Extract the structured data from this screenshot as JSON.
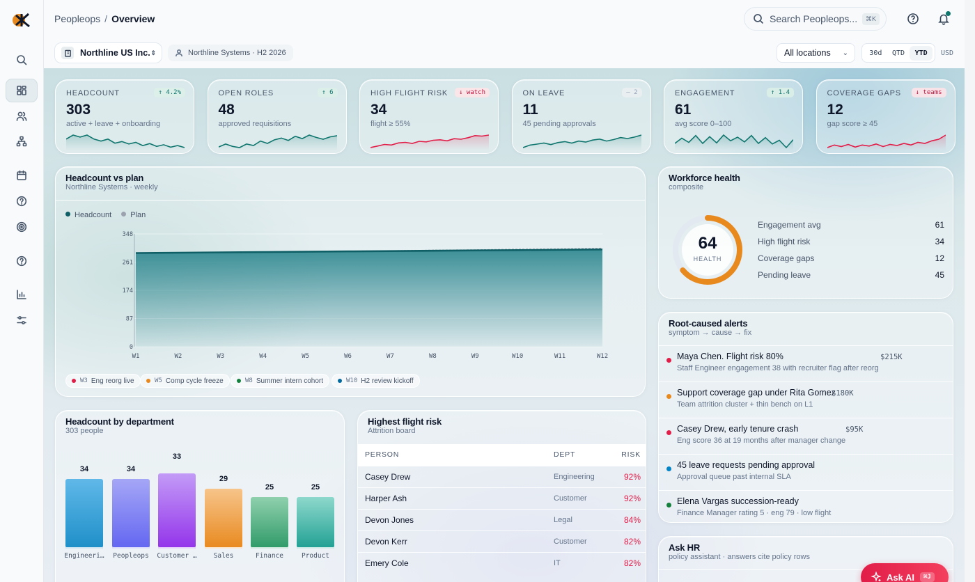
{
  "app": {
    "brand": "Peopleops",
    "page": "Overview",
    "breadcrumb_sep": "/"
  },
  "search": {
    "placeholder": "Search Peopleops...",
    "shortcut": "⌘K"
  },
  "sidebar": {
    "items": [
      {
        "icon": "search-icon"
      },
      {
        "icon": "grid-icon",
        "active": true
      },
      {
        "icon": "users-icon"
      },
      {
        "icon": "org-chart-icon"
      },
      {
        "icon": "calendar-icon"
      },
      {
        "icon": "help-icon"
      },
      {
        "icon": "target-icon"
      },
      {
        "icon": "help-icon"
      },
      {
        "icon": "bar-chart-icon"
      },
      {
        "icon": "sliders-icon"
      }
    ]
  },
  "filters": {
    "org": "Northline US Inc.",
    "context": "Northline Systems · H2 2026",
    "location": "All locations",
    "periods": [
      "30d",
      "QTD",
      "YTD"
    ],
    "active_period": "YTD",
    "currency": "USD"
  },
  "kpis": [
    {
      "label": "HEADCOUNT",
      "value": "303",
      "sub": "active + leave + onboarding",
      "badge": "↑ 4.2%",
      "trend": "up",
      "spark": [
        8,
        9,
        8.5,
        9,
        8,
        7.5,
        8,
        7,
        7.4,
        6.8,
        7.2,
        6.4,
        6.9,
        6.2,
        6.6,
        6,
        6.4,
        5.9
      ],
      "color": "#0f766e"
    },
    {
      "label": "OPEN ROLES",
      "value": "48",
      "sub": "approved requisitions",
      "badge": "↑ 6",
      "trend": "up",
      "spark": [
        4,
        5,
        4.2,
        3.8,
        5,
        4.5,
        6,
        5.2,
        6.4,
        7,
        6.2,
        7.6,
        6.8,
        8,
        7.2,
        6.6,
        7.4,
        7.8
      ],
      "color": "#0f766e"
    },
    {
      "label": "HIGH FLIGHT RISK",
      "value": "34",
      "sub": "flight ≥ 55%",
      "badge": "↓ watch",
      "trend": "down",
      "spark": [
        2,
        2.6,
        3.2,
        3,
        3.8,
        4,
        3.6,
        4.4,
        4.2,
        4.8,
        5,
        4.6,
        5.4,
        5.2,
        5.8,
        6.6,
        6.4,
        6.8
      ],
      "color": "#e11d48"
    },
    {
      "label": "ON LEAVE",
      "value": "11",
      "sub": "45 pending approvals",
      "badge": "— 2",
      "trend": "flat",
      "spark": [
        2,
        3,
        3.4,
        3.8,
        3.2,
        4,
        4.4,
        3.8,
        4.6,
        4.2,
        5,
        5.4,
        4.6,
        5.2,
        6,
        5.6,
        6.2,
        7
      ],
      "color": "#0f766e"
    },
    {
      "label": "ENGAGEMENT",
      "value": "61",
      "sub": "avg score 0–100",
      "badge": "↑ 1.4",
      "trend": "up",
      "spark": [
        5,
        7,
        5.4,
        8,
        5,
        7.6,
        5.2,
        8.2,
        6,
        7.4,
        5.6,
        8,
        5,
        7.2,
        4.8,
        6.2,
        3.4,
        6.4
      ],
      "color": "#0f766e"
    },
    {
      "label": "COVERAGE GAPS",
      "value": "12",
      "sub": "gap score ≥ 45",
      "badge": "↓ teams",
      "trend": "down",
      "spark": [
        3,
        4,
        3.4,
        4.2,
        3.2,
        4,
        3.6,
        4.4,
        3.4,
        4.2,
        3.8,
        4.6,
        4,
        5,
        4.6,
        5.6,
        6.2,
        7.8
      ],
      "color": "#e11d48"
    }
  ],
  "headcount_chart": {
    "title": "Headcount vs plan",
    "subtitle": "Northline Systems · weekly",
    "legend": [
      {
        "name": "Headcount",
        "color": "#0f5f66"
      },
      {
        "name": "Plan",
        "color": "#9ca3af"
      }
    ],
    "events": [
      {
        "week": "W3",
        "label": "Eng reorg live",
        "color": "#e11d48"
      },
      {
        "week": "W5",
        "label": "Comp cycle freeze",
        "color": "#e8891e"
      },
      {
        "week": "W8",
        "label": "Summer intern cohort",
        "color": "#15803d"
      },
      {
        "week": "W10",
        "label": "H2 review kickoff",
        "color": "#0369a1"
      }
    ]
  },
  "chart_data": [
    {
      "type": "area",
      "title": "Headcount vs plan",
      "subtitle": "Northline Systems · weekly",
      "categories": [
        "W1",
        "W2",
        "W3",
        "W4",
        "W5",
        "W6",
        "W7",
        "W8",
        "W9",
        "W10",
        "W11",
        "W12"
      ],
      "series": [
        {
          "name": "Headcount",
          "values": [
            289,
            290,
            291,
            292,
            293,
            294,
            295,
            296,
            297,
            298,
            299,
            300
          ]
        },
        {
          "name": "Plan",
          "values": [
            289,
            290,
            291,
            292,
            294,
            295,
            296,
            298,
            299,
            301,
            302,
            304
          ]
        }
      ],
      "yticks": [
        0,
        87,
        174,
        261,
        348
      ],
      "ylim": [
        0,
        348
      ]
    },
    {
      "type": "bar",
      "title": "Headcount by department",
      "subtitle": "303 people",
      "categories": [
        "Engineeri…",
        "Peopleops",
        "Customer …",
        "Sales",
        "Finance",
        "Product"
      ],
      "values": [
        34,
        34,
        33,
        29,
        25,
        25
      ]
    }
  ],
  "workforce_health": {
    "title": "Workforce health",
    "subtitle": "composite",
    "score": "64",
    "score_label": "HEALTH",
    "score_fraction": 0.64,
    "rows": [
      {
        "label": "Engagement avg",
        "value": "61"
      },
      {
        "label": "High flight risk",
        "value": "34"
      },
      {
        "label": "Coverage gaps",
        "value": "12"
      },
      {
        "label": "Pending leave",
        "value": "45"
      }
    ]
  },
  "alerts": {
    "title": "Root-caused alerts",
    "subtitle": "symptom → cause → fix",
    "items": [
      {
        "title": "Maya Chen. Flight risk 80%",
        "desc": "Staff Engineer engagement 38 with recruiter flag after reorg",
        "amount": "$215K",
        "color": "#e11d48"
      },
      {
        "title": "Support coverage gap under Rita Gomez",
        "desc": "Team attrition cluster + thin bench on L1",
        "amount": "$180K",
        "color": "#e8891e"
      },
      {
        "title": "Casey Drew, early tenure crash",
        "desc": "Eng score 36 at 19 months after manager change",
        "amount": "$95K",
        "color": "#e11d48"
      },
      {
        "title": "45 leave requests pending approval",
        "desc": "Approval queue past internal SLA",
        "amount": "",
        "color": "#0284c7"
      },
      {
        "title": "Elena Vargas succession-ready",
        "desc": "Finance Manager rating 5 · eng 79 · low flight",
        "amount": "",
        "color": "#15803d"
      }
    ]
  },
  "departments": {
    "title": "Headcount by department",
    "subtitle": "303 people",
    "bars": [
      {
        "label": "Engineeri…",
        "value": "34",
        "color_top": "#60b8e8",
        "color_bot": "#1e8fc8"
      },
      {
        "label": "Peopleops",
        "value": "34",
        "color_top": "#a5a6f6",
        "color_bot": "#6366f1"
      },
      {
        "label": "Customer …",
        "value": "33",
        "color_top": "#c39bf7",
        "color_bot": "#9333ea"
      },
      {
        "label": "Sales",
        "value": "29",
        "color_top": "#f7c48a",
        "color_bot": "#e8891e"
      },
      {
        "label": "Finance",
        "value": "25",
        "color_top": "#8fd0ad",
        "color_bot": "#2f9a68"
      },
      {
        "label": "Product",
        "value": "25",
        "color_top": "#8ed8cc",
        "color_bot": "#20a093"
      }
    ]
  },
  "flight_risk": {
    "title": "Highest flight risk",
    "subtitle": "Attrition board",
    "columns": [
      "PERSON",
      "DEPT",
      "RISK"
    ],
    "rows": [
      {
        "person": "Casey Drew",
        "dept": "Engineering",
        "risk": "92%"
      },
      {
        "person": "Harper Ash",
        "dept": "Customer",
        "risk": "92%"
      },
      {
        "person": "Devon Jones",
        "dept": "Legal",
        "risk": "84%"
      },
      {
        "person": "Devon Kerr",
        "dept": "Customer",
        "risk": "82%"
      },
      {
        "person": "Emery Cole",
        "dept": "IT",
        "risk": "82%"
      }
    ]
  },
  "ask_hr": {
    "title": "Ask HR",
    "subtitle": "policy assistant · answers cite policy rows"
  },
  "ask_ai": {
    "label": "Ask AI",
    "shortcut": "⌘J"
  }
}
